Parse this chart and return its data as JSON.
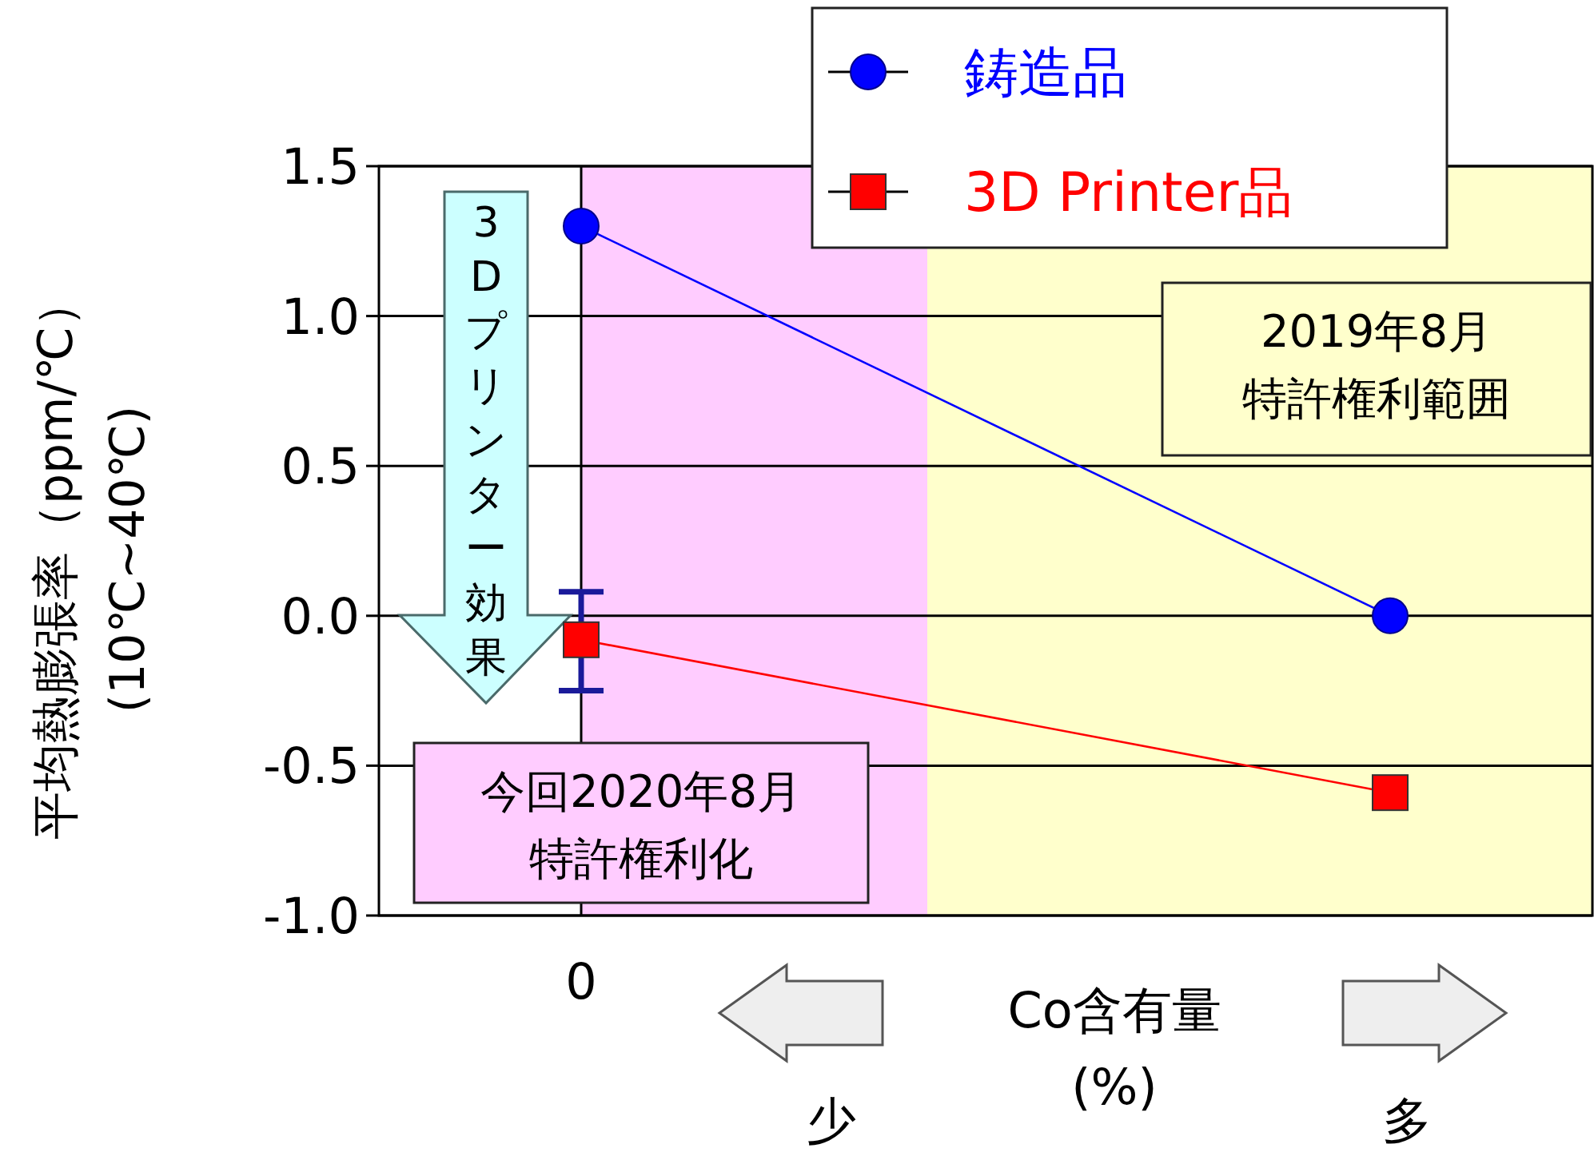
{
  "chart_data": {
    "type": "line",
    "xlabel": "Co含有量\n(%)",
    "ylabel": "平均熱膨張率（ppm/℃）\n(10℃~40℃)",
    "categories": [
      "0",
      null,
      null
    ],
    "series": [
      {
        "name": "鋳造品",
        "color": "#0000ff",
        "values": [
          1.3,
          null,
          0.0
        ],
        "marker": "circle"
      },
      {
        "name": "3D Printer品",
        "color": "#ff0000",
        "values": [
          -0.08,
          null,
          -0.59
        ],
        "marker": "square",
        "errors": [
          [
            -0.25,
            0.08
          ],
          null,
          null
        ]
      }
    ],
    "ylim": [
      -1.0,
      1.5
    ],
    "yticks": [
      {
        "value": -1.0,
        "label": "-1.0"
      },
      {
        "value": -0.5,
        "label": "-0.5"
      },
      {
        "value": 0,
        "label": "0.0"
      },
      {
        "value": 0.5,
        "label": "0.5"
      },
      {
        "value": 1.0,
        "label": "1.0"
      },
      {
        "value": 1.5,
        "label": "1.5"
      }
    ],
    "grid": "y",
    "legend": "top right",
    "line_style": "solid",
    "annotations": [
      "3Dプリンター効果",
      "少",
      "多",
      "今回2020年8月特許権利化",
      "2019年8月特許権利範囲"
    ]
  }
}
